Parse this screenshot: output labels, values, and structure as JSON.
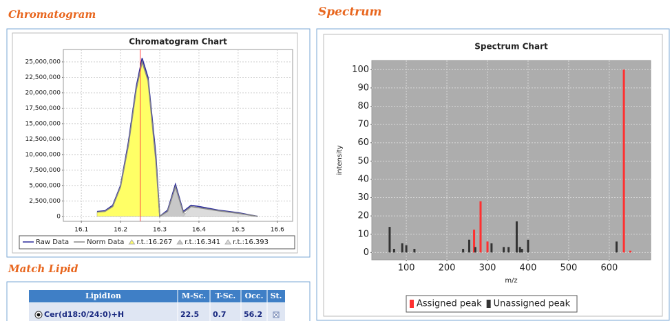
{
  "sections": {
    "chromatogram": "Chromatogram",
    "spectrum": "Spectrum",
    "match": "Match Lipid"
  },
  "chart_data": [
    {
      "type": "line",
      "title": "Chromatogram Chart",
      "grid": true,
      "legend": "bottom",
      "plot_background": "#ffffff",
      "xlim": [
        16.054,
        16.639
      ],
      "xticks": [
        16.1,
        16.2,
        16.3,
        16.4,
        16.5,
        16.6
      ],
      "ylim": [
        -800000,
        27000000
      ],
      "yticks": [
        {
          "value": 0,
          "label": "0"
        },
        {
          "value": 2500000,
          "label": "2,500,000"
        },
        {
          "value": 5000000,
          "label": "5,000,000"
        },
        {
          "value": 7500000,
          "label": "7,500,000"
        },
        {
          "value": 10000000,
          "label": "10,000,000"
        },
        {
          "value": 12500000,
          "label": "12,500,000"
        },
        {
          "value": 15000000,
          "label": "15,000,000"
        },
        {
          "value": 17500000,
          "label": "17,500,000"
        },
        {
          "value": 20000000,
          "label": "20,000,000"
        },
        {
          "value": 22500000,
          "label": "22,500,000"
        },
        {
          "value": 25000000,
          "label": "25,000,000"
        }
      ],
      "marker_x": 16.25,
      "marker_color": "#ff4040",
      "series": [
        {
          "name": "r.t.:16.267",
          "style": "area",
          "color": "#ffff66",
          "x": [
            16.14,
            16.16,
            16.18,
            16.2,
            16.22,
            16.24,
            16.255,
            16.27,
            16.29,
            16.3
          ],
          "values": [
            700000,
            800000,
            1600000,
            4800000,
            11500000,
            20500000,
            25000000,
            22000000,
            9000000,
            0
          ]
        },
        {
          "name": "r.t.:16.341",
          "style": "area",
          "color": "#c8c8c8",
          "x": [
            16.3,
            16.32,
            16.34,
            16.36,
            16.38
          ],
          "values": [
            0,
            800000,
            4800000,
            600000,
            0
          ]
        },
        {
          "name": "r.t.:16.393",
          "style": "area",
          "color": "#dcdcdc",
          "x": [
            16.36,
            16.38,
            16.4,
            16.45,
            16.5,
            16.55
          ],
          "values": [
            0,
            1600000,
            1400000,
            900000,
            500000,
            0
          ]
        },
        {
          "name": "Raw Data",
          "style": "line",
          "color": "#2a2a9a",
          "x": [
            16.14,
            16.16,
            16.18,
            16.2,
            16.22,
            16.24,
            16.255,
            16.27,
            16.29,
            16.3,
            16.32,
            16.34,
            16.36,
            16.38,
            16.4,
            16.45,
            16.5,
            16.55
          ],
          "values": [
            800000,
            900000,
            1800000,
            5000000,
            12000000,
            21000000,
            25600000,
            22500000,
            10000000,
            0,
            1000000,
            5200000,
            800000,
            1800000,
            1600000,
            1000000,
            600000,
            0
          ]
        },
        {
          "name": "Norm Data",
          "style": "line",
          "color": "#888888",
          "x": [
            16.14,
            16.16,
            16.18,
            16.2,
            16.22,
            16.24,
            16.255,
            16.27,
            16.29,
            16.3,
            16.32,
            16.34,
            16.36,
            16.38,
            16.4,
            16.45,
            16.5,
            16.55
          ],
          "values": [
            700000,
            800000,
            1600000,
            4800000,
            11500000,
            20500000,
            25000000,
            22000000,
            9000000,
            0,
            800000,
            4800000,
            600000,
            1600000,
            1400000,
            900000,
            500000,
            0
          ]
        }
      ],
      "legend_order": [
        3,
        4,
        0,
        1,
        2
      ]
    },
    {
      "type": "bar",
      "title": "Spectrum Chart",
      "x_label": "m/z",
      "y_label": "intensity",
      "grid": true,
      "legend": "bottom",
      "plot_background": "#adadad",
      "xlim": [
        15,
        702
      ],
      "xticks": [
        100,
        200,
        300,
        400,
        500,
        600
      ],
      "ylim": [
        -4,
        105
      ],
      "yticks": [
        0,
        10,
        20,
        30,
        40,
        50,
        60,
        70,
        80,
        90,
        100
      ],
      "series": [
        {
          "name": "Assigned peak",
          "color": "#ff3030",
          "x": [
            267,
            283,
            300,
            636,
            652
          ],
          "values": [
            12.5,
            28,
            6,
            100,
            1
          ]
        },
        {
          "name": "Unassigned peak",
          "color": "#333333",
          "x": [
            59,
            70,
            90,
            100,
            120,
            240,
            255,
            270,
            310,
            340,
            352,
            372,
            380,
            385,
            400,
            618
          ],
          "values": [
            14,
            2,
            5,
            4,
            2,
            2,
            7,
            3,
            5,
            3,
            3,
            17,
            3,
            2,
            7,
            6
          ]
        }
      ],
      "legend_order": [
        0,
        1
      ]
    }
  ],
  "table": {
    "columns": [
      "LipidIon",
      "M-Sc.",
      "T-Sc.",
      "Occ.",
      "St."
    ],
    "rows": [
      [
        "Cer(d18:0/24:0)+H",
        22.5,
        0.7,
        56.2
      ]
    ]
  }
}
